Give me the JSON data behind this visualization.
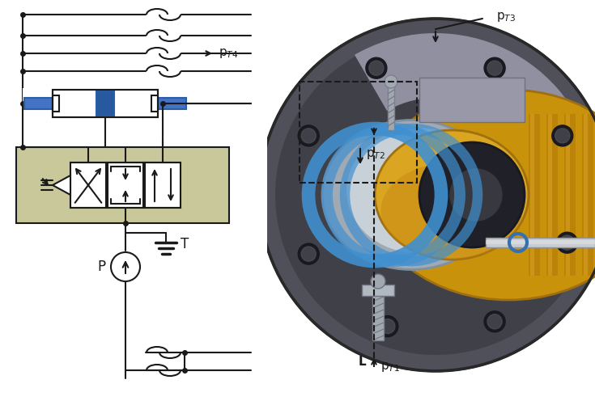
{
  "background_color": "#ffffff",
  "label_pT1": "p$_{T1}$",
  "label_pT2": "p$_{T2}$",
  "label_pT3": "p$_{T3}$",
  "label_pT4": "p$_{T4}$",
  "label_L": "L",
  "label_P": "P",
  "label_T": "T",
  "line_color": "#1a1a1a",
  "blue_color": "#4472C4",
  "blue_dark": "#2a5fa5",
  "blue_piston": "#2050a0",
  "valve_bg": "#c8c89a",
  "gold_color": "#c8920a",
  "gold_light": "#daa520",
  "gold_dark": "#a07010",
  "gray_dark": "#4a4a50",
  "gray_mid": "#787880",
  "gray_light": "#b0b8c0",
  "silver": "#c0c8d0",
  "dark_face": "#363640",
  "dark_hole": "#1a1a20",
  "screw_color": "#555560",
  "light_blue": "#5b9bd5",
  "blue_ring": "#4090d0"
}
